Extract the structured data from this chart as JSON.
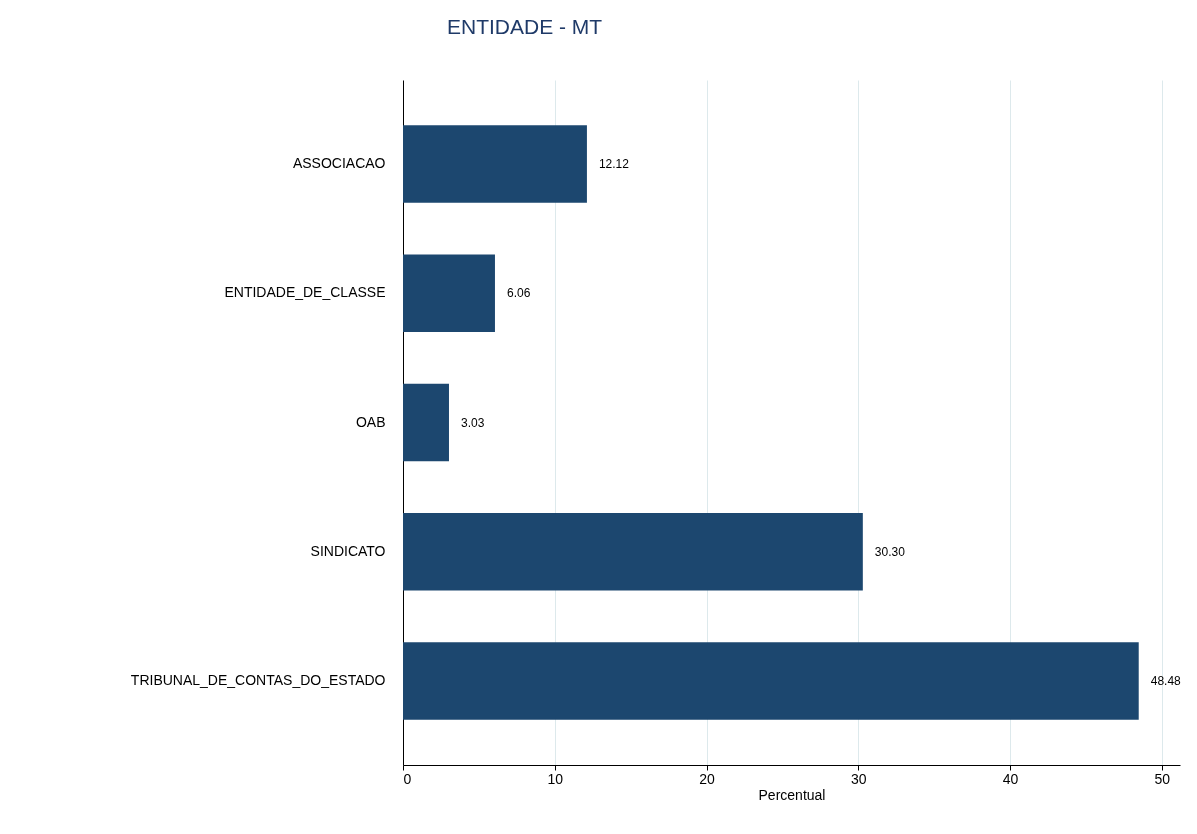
{
  "chart_data": {
    "type": "bar",
    "orientation": "horizontal",
    "title": "ENTIDADE - MT",
    "xlabel": "Percentual",
    "categories": [
      "ASSOCIACAO",
      "ENTIDADE_DE_CLASSE",
      "OAB",
      "SINDICATO",
      "TRIBUNAL_DE_CONTAS_DO_ESTADO"
    ],
    "values": [
      12.12,
      6.06,
      3.03,
      30.3,
      48.48
    ],
    "value_labels": [
      "12.12",
      "6.06",
      "3.03",
      "30.30",
      "48.48"
    ],
    "color": "#1c476f",
    "xlim": [
      0,
      51.2
    ],
    "xticks": [
      0,
      10,
      20,
      30,
      40,
      50
    ],
    "grid": "x"
  }
}
